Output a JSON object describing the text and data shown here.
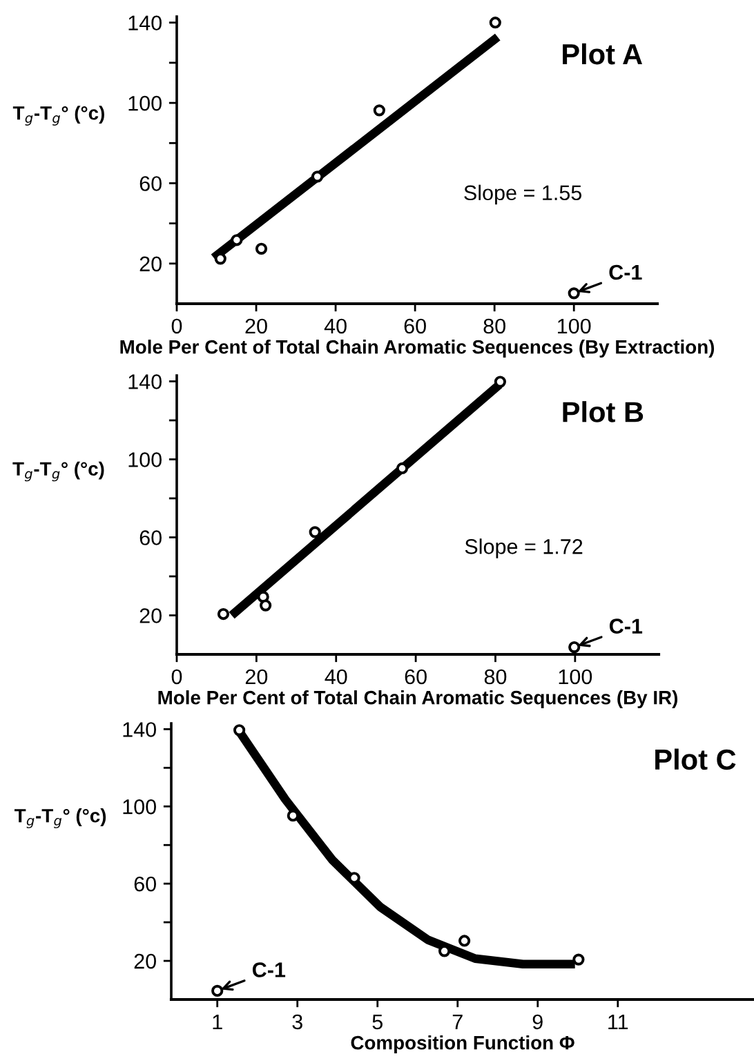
{
  "chart_data": [
    {
      "type": "scatter",
      "title": "Plot A",
      "xlabel": "Mole Per Cent of Total Chain Aromatic Sequences (By Extraction)",
      "ylabel": "T$_{g}$-T$_{g}$° (°c)",
      "xlim": [
        0,
        121
      ],
      "ylim": [
        0,
        143
      ],
      "xticks": [
        0,
        20,
        40,
        60,
        80,
        100
      ],
      "yticks": [
        20,
        {
          "value": 40,
          "label": null
        },
        60,
        {
          "value": 80,
          "label": null
        },
        100,
        {
          "value": 120,
          "label": null
        },
        140
      ],
      "grid": false,
      "legend": false,
      "series": [
        {
          "marker": "circle",
          "color": "#000000",
          "x": [
            11.0,
            15.1,
            21.3,
            35.4,
            51.0,
            80.2,
            100
          ],
          "values": [
            22.4,
            31.7,
            27.4,
            63.3,
            96.3,
            140,
            5.2
          ]
        },
        {
          "type": "line",
          "marker": "none",
          "color": "#000000",
          "x": [
            9.3,
            80.8
          ],
          "values": [
            22.9,
            132.8
          ]
        }
      ],
      "annotations": [
        "Slope = 1.55",
        {
          "text": "C-1",
          "x": 100,
          "y": 5.2
        }
      ]
    },
    {
      "type": "scatter",
      "title": "Plot B",
      "xlabel": "Mole Per Cent of Total Chain Aromatic Sequences (By IR)",
      "ylabel": "T$_{g}$-T$_{g}$° (°c)",
      "xlim": [
        0,
        121
      ],
      "ylim": [
        0,
        143
      ],
      "xticks": [
        0,
        20,
        40,
        60,
        80,
        100
      ],
      "yticks": [
        20,
        {
          "value": 40,
          "label": null
        },
        60,
        {
          "value": 80,
          "label": null
        },
        100,
        {
          "value": 120,
          "label": null
        },
        140
      ],
      "grid": false,
      "legend": false,
      "series": [
        {
          "marker": "circle",
          "color": "#000000",
          "x": [
            11.7,
            21.7,
            22.3,
            34.7,
            56.6,
            81.2,
            99.8
          ],
          "values": [
            20.7,
            29.5,
            25.1,
            62.7,
            95.4,
            139.8,
            3.7
          ]
        },
        {
          "type": "line",
          "marker": "none",
          "color": "#000000",
          "x": [
            13.8,
            81.0
          ],
          "values": [
            20.0,
            138.3
          ]
        }
      ],
      "annotations": [
        "Slope = 1.72",
        {
          "text": "C-1",
          "x": 99.8,
          "y": 3.7
        }
      ]
    },
    {
      "type": "scatter",
      "title": "Plot C",
      "xlabel": "Composition Function Φ",
      "ylabel": "T$_{g}$-T$_{g}$° (°c)",
      "xlim": [
        -0.15,
        14.4
      ],
      "ylim": [
        0,
        143
      ],
      "xticks": [
        1,
        3,
        5,
        7,
        9,
        11
      ],
      "yticks": [
        20,
        {
          "value": 40,
          "label": null
        },
        60,
        {
          "value": 80,
          "label": null
        },
        100,
        {
          "value": 120,
          "label": null
        },
        140
      ],
      "grid": false,
      "legend": false,
      "series": [
        {
          "marker": "circle",
          "color": "#000000",
          "x": [
            1.55,
            2.89,
            4.42,
            6.67,
            7.17,
            10.02,
            1
          ],
          "values": [
            139.5,
            95.2,
            63,
            25.1,
            30.4,
            20.7,
            4.5
          ]
        },
        {
          "type": "line",
          "marker": "none",
          "color": "#000000",
          "x": [
            1.55,
            2.7,
            3.88,
            5.07,
            6.26,
            7.44,
            8.63,
            9.93
          ],
          "values": [
            138.8,
            103.6,
            72.1,
            47.9,
            30.9,
            21.2,
            18.3,
            18.3
          ]
        }
      ],
      "annotations": [
        {
          "text": "C-1",
          "x": 1,
          "y": 4.5
        }
      ]
    }
  ]
}
